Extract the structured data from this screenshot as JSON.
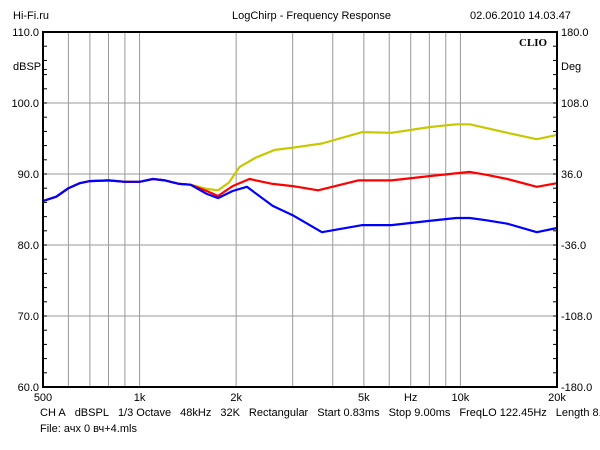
{
  "header": {
    "site": "Hi-Fi.ru",
    "title": "LogChirp - Frequency Response",
    "datetime": "02.06.2010 14.03.47"
  },
  "brand": "CLIO",
  "footer": {
    "params": [
      "CH A",
      "dBSPL",
      "1/3 Octave",
      "48kHz",
      "32K",
      "Rectangular",
      "Start 0.83ms",
      "Stop 9.00ms",
      "FreqLO 122.45Hz",
      "Length 8.17ms"
    ],
    "file": "File: ачх 0 вч+4.mls"
  },
  "chart_data": {
    "type": "line",
    "title": "LogChirp - Frequency Response",
    "xlabel": "Hz",
    "ylabel": "dBSPL",
    "y2label": "Deg",
    "xscale": "log",
    "xlim": [
      500,
      20000
    ],
    "ylim": [
      60,
      110
    ],
    "y2lim": [
      -180,
      180
    ],
    "x_ticks": [
      {
        "v": 500,
        "label": "500"
      },
      {
        "v": 1000,
        "label": "1k"
      },
      {
        "v": 2000,
        "label": "2k"
      },
      {
        "v": 5000,
        "label": "5k"
      },
      {
        "v": 10000,
        "label": "10k"
      },
      {
        "v": 20000,
        "label": "20k"
      }
    ],
    "x_grid": [
      600,
      700,
      800,
      900,
      1000,
      2000,
      3000,
      4000,
      5000,
      6000,
      7000,
      8000,
      9000,
      10000
    ],
    "y_ticks": [
      {
        "v": 60,
        "label": "60.0"
      },
      {
        "v": 70,
        "label": "70.0"
      },
      {
        "v": 80,
        "label": "80.0"
      },
      {
        "v": 90,
        "label": "90.0"
      },
      {
        "v": 100,
        "label": "100.0"
      },
      {
        "v": 110,
        "label": "110.0"
      }
    ],
    "y2_ticks": [
      "-180.0",
      "-108.0",
      "-36.0",
      "36.0",
      "108.0",
      "180.0"
    ],
    "grid": true,
    "series": [
      {
        "name": "yellow",
        "color": "#c8c800",
        "x": [
          500,
          550,
          600,
          650,
          700,
          800,
          900,
          1000,
          1100,
          1200,
          1330,
          1440,
          1620,
          1755,
          1900,
          2050,
          2300,
          2640,
          3000,
          3700,
          4950,
          6100,
          8000,
          9700,
          10700,
          12000,
          14000,
          17300,
          20000
        ],
        "y": [
          86.2,
          86.8,
          88.0,
          88.7,
          89.0,
          89.1,
          88.9,
          88.9,
          89.3,
          89.1,
          88.6,
          88.5,
          87.9,
          87.7,
          88.8,
          91.0,
          92.3,
          93.4,
          93.7,
          94.3,
          95.9,
          95.8,
          96.6,
          97.0,
          97.0,
          96.5,
          95.8,
          94.9,
          95.5
        ]
      },
      {
        "name": "red",
        "color": "#ff0000",
        "x": [
          500,
          550,
          600,
          650,
          700,
          800,
          900,
          1000,
          1100,
          1200,
          1330,
          1440,
          1620,
          1755,
          1950,
          2200,
          2600,
          3000,
          3600,
          4800,
          6100,
          8000,
          10700,
          12000,
          14000,
          17300,
          20000
        ],
        "y": [
          86.2,
          86.8,
          88.0,
          88.7,
          89.0,
          89.1,
          88.9,
          88.9,
          89.3,
          89.1,
          88.6,
          88.5,
          87.6,
          86.9,
          88.3,
          89.3,
          88.6,
          88.3,
          87.7,
          89.1,
          89.1,
          89.7,
          90.3,
          89.9,
          89.3,
          88.2,
          88.7
        ]
      },
      {
        "name": "blue",
        "color": "#0000ff",
        "x": [
          500,
          550,
          600,
          650,
          700,
          800,
          900,
          1000,
          1100,
          1200,
          1330,
          1440,
          1620,
          1755,
          1950,
          2160,
          2600,
          3000,
          3700,
          4950,
          6100,
          8000,
          9700,
          10700,
          12000,
          14000,
          17300,
          20000
        ],
        "y": [
          86.2,
          86.8,
          88.0,
          88.7,
          89.0,
          89.1,
          88.9,
          88.9,
          89.3,
          89.1,
          88.6,
          88.5,
          87.2,
          86.6,
          87.6,
          88.2,
          85.5,
          84.2,
          81.8,
          82.8,
          82.8,
          83.4,
          83.8,
          83.8,
          83.5,
          83.0,
          81.8,
          82.4
        ]
      }
    ]
  }
}
